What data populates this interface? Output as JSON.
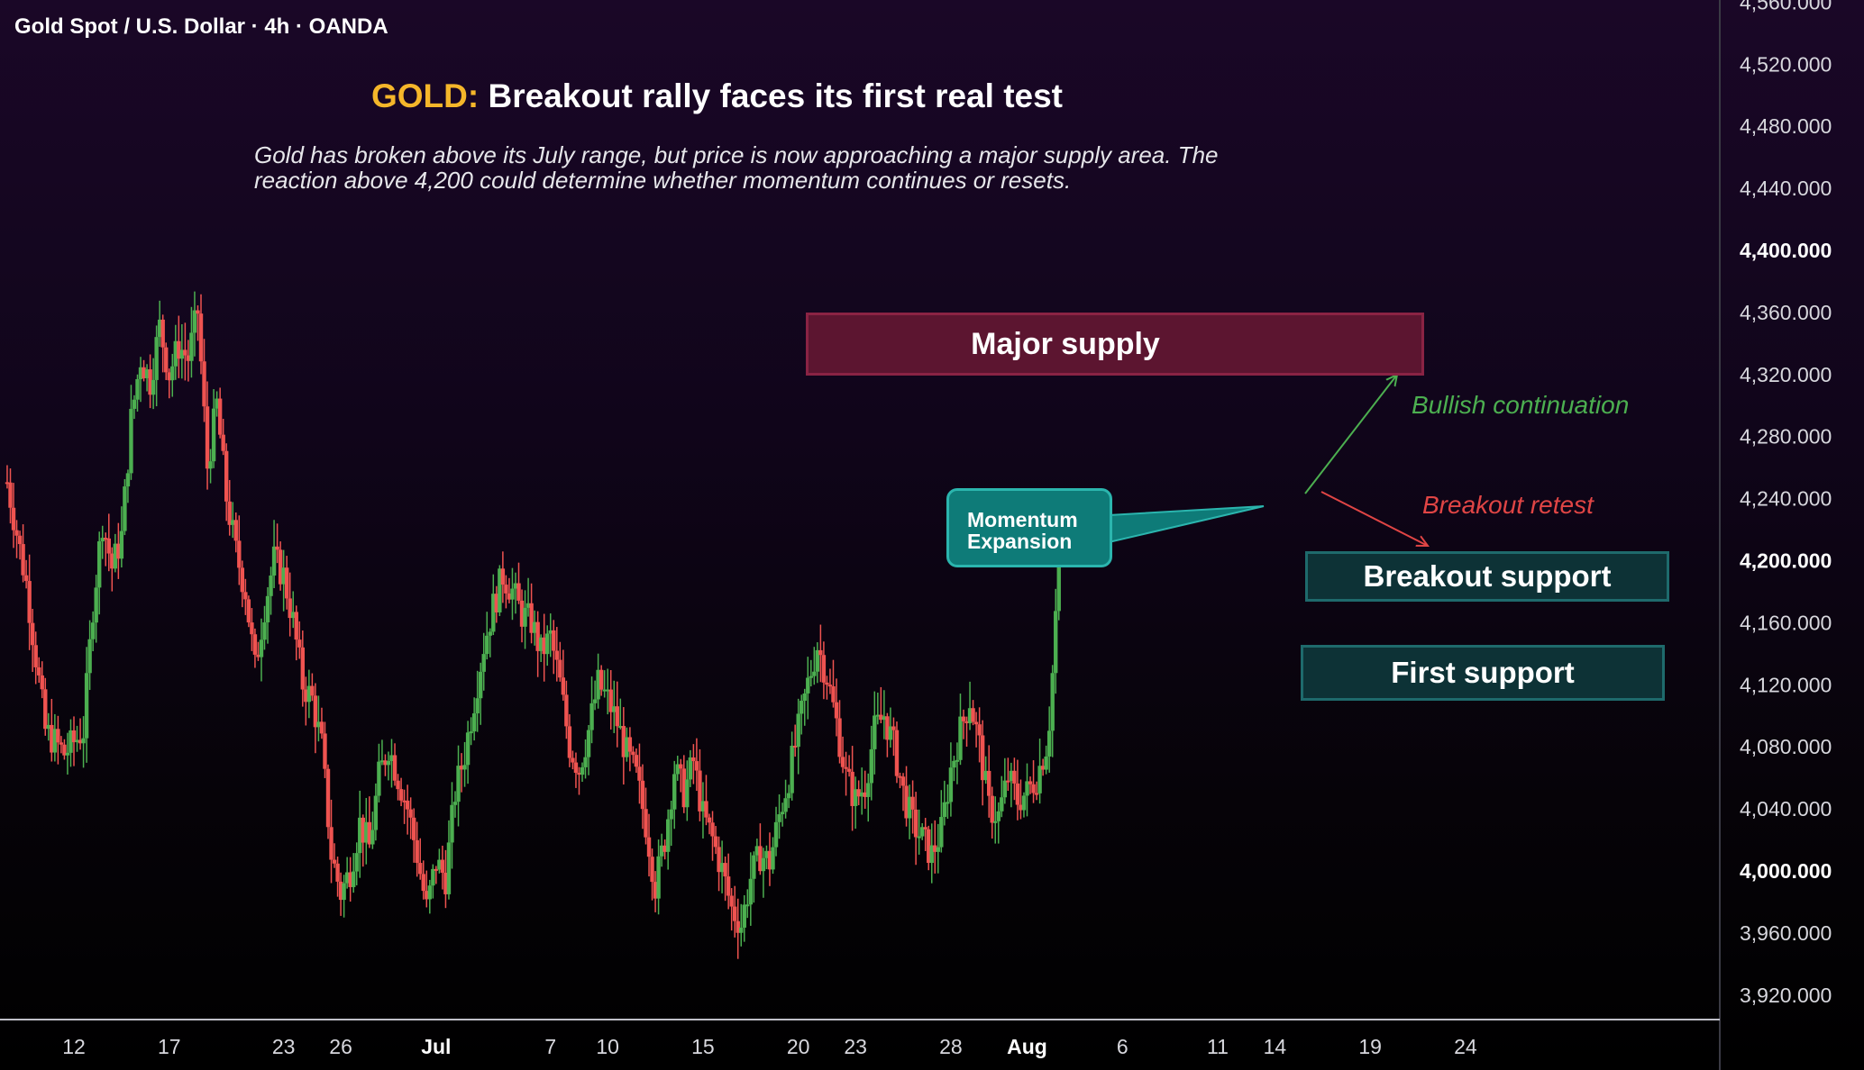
{
  "symbol_title": "Gold Spot / U.S. Dollar · 4h · OANDA",
  "headline": {
    "accent": "GOLD:",
    "text": " Breakout rally faces its first real test"
  },
  "description": "Gold has broken above its July range, but price is now approaching a major supply area. The reaction above 4,200 could determine whether momentum continues or resets.",
  "zones": {
    "major_supply": "Major supply",
    "breakout_support": "Breakout support",
    "first_support": "First support"
  },
  "callout": {
    "line1": "Momentum",
    "line2": "Expansion"
  },
  "arrow_labels": {
    "bullish": "Bullish continuation",
    "retest": "Breakout retest"
  },
  "colors": {
    "up": "#4caf50",
    "down": "#ef5350",
    "accent": "#f5b62a",
    "supply": "#5c1530",
    "support": "#0d3236",
    "callout": "#0e7b78"
  },
  "chart_data": {
    "type": "candlestick",
    "title": "Gold Spot / U.S. Dollar · 4h · OANDA",
    "ylim": [
      3890,
      4570
    ],
    "y_ticks": [
      {
        "value": 4560,
        "label": "4,560.000"
      },
      {
        "value": 4520,
        "label": "4,520.000"
      },
      {
        "value": 4480,
        "label": "4,480.000"
      },
      {
        "value": 4440,
        "label": "4,440.000"
      },
      {
        "value": 4400,
        "label": "4,400.000",
        "bold": true
      },
      {
        "value": 4360,
        "label": "4,360.000"
      },
      {
        "value": 4320,
        "label": "4,320.000"
      },
      {
        "value": 4280,
        "label": "4,280.000"
      },
      {
        "value": 4240,
        "label": "4,240.000"
      },
      {
        "value": 4200,
        "label": "4,200.000",
        "bold": true
      },
      {
        "value": 4160,
        "label": "4,160.000"
      },
      {
        "value": 4120,
        "label": "4,120.000"
      },
      {
        "value": 4080,
        "label": "4,080.000"
      },
      {
        "value": 4040,
        "label": "4,040.000"
      },
      {
        "value": 4000,
        "label": "4,000.000",
        "bold": true
      },
      {
        "value": 3960,
        "label": "3,960.000"
      },
      {
        "value": 3920,
        "label": "3,920.000"
      }
    ],
    "x_ticks": [
      {
        "day": 12,
        "label": "12"
      },
      {
        "day": 17,
        "label": "17"
      },
      {
        "day": 23,
        "label": "23"
      },
      {
        "day": 26,
        "label": "26"
      },
      {
        "day": 31,
        "label": "Jul",
        "bold": true
      },
      {
        "day": 37,
        "label": "7"
      },
      {
        "day": 40,
        "label": "10"
      },
      {
        "day": 45,
        "label": "15"
      },
      {
        "day": 50,
        "label": "20"
      },
      {
        "day": 53,
        "label": "23"
      },
      {
        "day": 58,
        "label": "28"
      },
      {
        "day": 62,
        "label": "Aug",
        "bold": true
      },
      {
        "day": 67,
        "label": "6"
      },
      {
        "day": 72,
        "label": "11"
      },
      {
        "day": 75,
        "label": "14"
      },
      {
        "day": 80,
        "label": "19"
      },
      {
        "day": 85,
        "label": "24"
      }
    ],
    "zones": [
      {
        "name": "Major supply",
        "from": 4322,
        "to": 4362
      },
      {
        "name": "Breakout support",
        "from": 4180,
        "to": 4210
      },
      {
        "name": "First support",
        "from": 4110,
        "to": 4145
      }
    ],
    "close_path": [
      [
        8.5,
        4250
      ],
      [
        9.5,
        4185
      ],
      [
        10.5,
        4090
      ],
      [
        11.5,
        4075
      ],
      [
        12.5,
        4090
      ],
      [
        13,
        4170
      ],
      [
        13.5,
        4225
      ],
      [
        14,
        4195
      ],
      [
        14.5,
        4215
      ],
      [
        15,
        4290
      ],
      [
        15.5,
        4330
      ],
      [
        16,
        4315
      ],
      [
        16.5,
        4350
      ],
      [
        17,
        4320
      ],
      [
        17.5,
        4338
      ],
      [
        18,
        4330
      ],
      [
        18.5,
        4360
      ],
      [
        19,
        4260
      ],
      [
        19.5,
        4300
      ],
      [
        20,
        4240
      ],
      [
        20.5,
        4205
      ],
      [
        21,
        4180
      ],
      [
        21.5,
        4130
      ],
      [
        22,
        4170
      ],
      [
        22.5,
        4200
      ],
      [
        23,
        4190
      ],
      [
        23.5,
        4160
      ],
      [
        24,
        4120
      ],
      [
        24.5,
        4110
      ],
      [
        25,
        4080
      ],
      [
        25.5,
        4010
      ],
      [
        26,
        3985
      ],
      [
        26.5,
        4000
      ],
      [
        27,
        4030
      ],
      [
        27.5,
        4015
      ],
      [
        28,
        4060
      ],
      [
        28.5,
        4080
      ],
      [
        29,
        4060
      ],
      [
        29.5,
        4040
      ],
      [
        30,
        4010
      ],
      [
        30.5,
        3975
      ],
      [
        31,
        4005
      ],
      [
        31.5,
        3995
      ],
      [
        32,
        4050
      ],
      [
        32.5,
        4075
      ],
      [
        33,
        4110
      ],
      [
        33.5,
        4145
      ],
      [
        34,
        4170
      ],
      [
        34.5,
        4190
      ],
      [
        35,
        4180
      ],
      [
        35.5,
        4165
      ],
      [
        36,
        4160
      ],
      [
        36.5,
        4140
      ],
      [
        37,
        4150
      ],
      [
        37.5,
        4120
      ],
      [
        38,
        4080
      ],
      [
        38.5,
        4065
      ],
      [
        39,
        4090
      ],
      [
        39.5,
        4120
      ],
      [
        40,
        4110
      ],
      [
        40.5,
        4095
      ],
      [
        41,
        4075
      ],
      [
        41.5,
        4060
      ],
      [
        42,
        4030
      ],
      [
        42.5,
        3990
      ],
      [
        43,
        4020
      ],
      [
        43.5,
        4065
      ],
      [
        44,
        4050
      ],
      [
        44.5,
        4070
      ],
      [
        45,
        4035
      ],
      [
        45.5,
        4020
      ],
      [
        46,
        4000
      ],
      [
        46.5,
        3975
      ],
      [
        47,
        3965
      ],
      [
        47.5,
        3995
      ],
      [
        48,
        4010
      ],
      [
        48.5,
        4005
      ],
      [
        49,
        4035
      ],
      [
        49.5,
        4060
      ],
      [
        50,
        4090
      ],
      [
        50.5,
        4120
      ],
      [
        51,
        4145
      ],
      [
        51.5,
        4125
      ],
      [
        52,
        4095
      ],
      [
        52.5,
        4060
      ],
      [
        53,
        4045
      ],
      [
        53.5,
        4055
      ],
      [
        54,
        4090
      ],
      [
        54.5,
        4100
      ],
      [
        55,
        4080
      ],
      [
        55.5,
        4050
      ],
      [
        56,
        4030
      ],
      [
        56.5,
        4020
      ],
      [
        57,
        4010
      ],
      [
        57.5,
        4025
      ],
      [
        58,
        4065
      ],
      [
        58.5,
        4090
      ],
      [
        59,
        4110
      ],
      [
        59.5,
        4080
      ],
      [
        60,
        4040
      ],
      [
        60.5,
        4035
      ],
      [
        61,
        4060
      ],
      [
        61.5,
        4045
      ],
      [
        62,
        4050
      ],
      [
        62.5,
        4060
      ],
      [
        63,
        4080
      ],
      [
        63.2,
        4100
      ],
      [
        63.4,
        4140
      ],
      [
        63.6,
        4190
      ],
      [
        63.8,
        4235
      ]
    ]
  }
}
